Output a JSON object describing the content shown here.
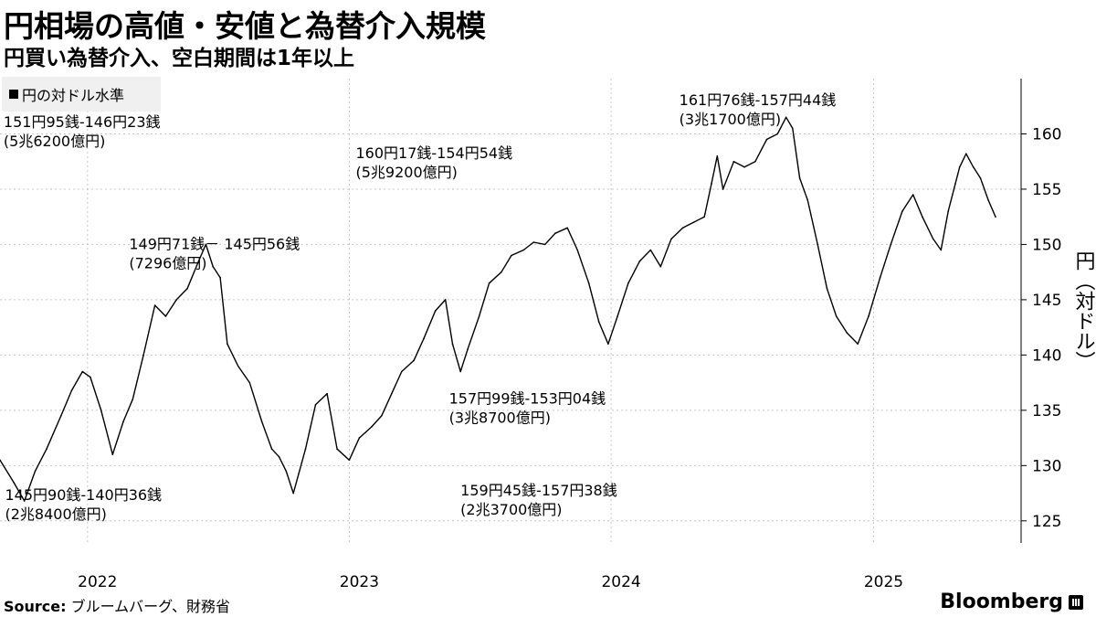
{
  "header": {
    "title": "円相場の高値・安値と為替介入規模",
    "subtitle": "円買い為替介入、空白期間は1年以上"
  },
  "legend": {
    "label": "円の対ドル水準"
  },
  "footer": {
    "source_label": "Source:",
    "source_text": "ブルームバーグ、財務省",
    "brand": "Bloomberg"
  },
  "colors": {
    "line": "#000000",
    "grid": "#c8c8c8",
    "legend_bg": "#f0f0f0"
  },
  "chart_data": {
    "type": "line",
    "ylabel": "円（対ドル）",
    "ylim": [
      123,
      165
    ],
    "y_ticks": [
      125,
      130,
      135,
      140,
      145,
      150,
      155,
      160
    ],
    "x_range": [
      "2021-09-01",
      "2025-06-20"
    ],
    "x_ticks": [
      {
        "date": "2022-01-01",
        "label": "2022"
      },
      {
        "date": "2023-01-01",
        "label": "2023"
      },
      {
        "date": "2024-01-01",
        "label": "2024"
      },
      {
        "date": "2025-01-01",
        "label": "2025"
      }
    ],
    "grid": true,
    "axis_side": "right",
    "series": [
      {
        "name": "円の対ドル水準",
        "points": [
          [
            "2021-09-01",
            130.5
          ],
          [
            "2021-09-20",
            128.5
          ],
          [
            "2021-10-05",
            126.8
          ],
          [
            "2021-10-20",
            129.5
          ],
          [
            "2021-11-05",
            131.5
          ],
          [
            "2021-11-25",
            134.5
          ],
          [
            "2021-12-10",
            136.8
          ],
          [
            "2021-12-25",
            138.5
          ],
          [
            "2022-01-05",
            138.0
          ],
          [
            "2022-01-20",
            135.0
          ],
          [
            "2022-02-05",
            131.0
          ],
          [
            "2022-02-20",
            134.0
          ],
          [
            "2022-03-05",
            136.0
          ],
          [
            "2022-03-20",
            140.0
          ],
          [
            "2022-04-05",
            144.5
          ],
          [
            "2022-04-20",
            143.5
          ],
          [
            "2022-05-05",
            145.0
          ],
          [
            "2022-05-20",
            146.0
          ],
          [
            "2022-06-05",
            148.5
          ],
          [
            "2022-06-15",
            150.0
          ],
          [
            "2022-06-25",
            148.0
          ],
          [
            "2022-07-05",
            147.0
          ],
          [
            "2022-07-15",
            141.0
          ],
          [
            "2022-07-30",
            139.0
          ],
          [
            "2022-08-15",
            137.5
          ],
          [
            "2022-09-01",
            134.0
          ],
          [
            "2022-09-15",
            131.5
          ],
          [
            "2022-09-25",
            130.8
          ],
          [
            "2022-10-05",
            129.5
          ],
          [
            "2022-10-15",
            127.5
          ],
          [
            "2022-11-01",
            131.5
          ],
          [
            "2022-11-15",
            135.5
          ],
          [
            "2022-12-01",
            136.5
          ],
          [
            "2022-12-15",
            131.5
          ],
          [
            "2023-01-01",
            130.5
          ],
          [
            "2023-01-15",
            132.5
          ],
          [
            "2023-02-01",
            133.5
          ],
          [
            "2023-02-15",
            134.5
          ],
          [
            "2023-03-01",
            136.5
          ],
          [
            "2023-03-15",
            138.5
          ],
          [
            "2023-04-01",
            139.5
          ],
          [
            "2023-04-15",
            141.5
          ],
          [
            "2023-05-01",
            144.0
          ],
          [
            "2023-05-15",
            145.0
          ],
          [
            "2023-05-25",
            141.0
          ],
          [
            "2023-06-05",
            138.5
          ],
          [
            "2023-06-15",
            140.5
          ],
          [
            "2023-07-01",
            143.5
          ],
          [
            "2023-07-15",
            146.5
          ],
          [
            "2023-08-01",
            147.5
          ],
          [
            "2023-08-15",
            149.0
          ],
          [
            "2023-09-01",
            149.5
          ],
          [
            "2023-09-15",
            150.2
          ],
          [
            "2023-10-01",
            150.0
          ],
          [
            "2023-10-15",
            151.0
          ],
          [
            "2023-11-01",
            151.5
          ],
          [
            "2023-11-15",
            149.5
          ],
          [
            "2023-12-01",
            146.5
          ],
          [
            "2023-12-15",
            143.0
          ],
          [
            "2023-12-28",
            141.0
          ],
          [
            "2024-01-10",
            143.5
          ],
          [
            "2024-01-25",
            146.5
          ],
          [
            "2024-02-10",
            148.5
          ],
          [
            "2024-02-25",
            149.5
          ],
          [
            "2024-03-10",
            148.0
          ],
          [
            "2024-03-25",
            150.5
          ],
          [
            "2024-04-10",
            151.5
          ],
          [
            "2024-04-25",
            152.0
          ],
          [
            "2024-05-10",
            152.5
          ],
          [
            "2024-05-20",
            155.5
          ],
          [
            "2024-05-28",
            158.0
          ],
          [
            "2024-06-05",
            155.0
          ],
          [
            "2024-06-20",
            157.5
          ],
          [
            "2024-07-05",
            157.0
          ],
          [
            "2024-07-20",
            157.5
          ],
          [
            "2024-08-05",
            159.5
          ],
          [
            "2024-08-20",
            160.0
          ],
          [
            "2024-09-01",
            161.5
          ],
          [
            "2024-09-10",
            160.5
          ],
          [
            "2024-09-20",
            156.0
          ],
          [
            "2024-10-01",
            154.0
          ],
          [
            "2024-10-15",
            150.0
          ],
          [
            "2024-10-28",
            146.0
          ],
          [
            "2024-11-10",
            143.5
          ],
          [
            "2024-11-25",
            142.0
          ],
          [
            "2024-12-10",
            141.0
          ],
          [
            "2024-12-25",
            143.5
          ],
          [
            "2025-01-10",
            147.0
          ],
          [
            "2025-01-25",
            150.0
          ],
          [
            "2025-02-10",
            153.0
          ],
          [
            "2025-02-25",
            154.5
          ],
          [
            "2025-03-10",
            152.5
          ],
          [
            "2025-03-25",
            150.5
          ],
          [
            "2025-04-05",
            149.5
          ],
          [
            "2025-04-15",
            153.0
          ],
          [
            "2025-04-25",
            155.5
          ],
          [
            "2025-05-01",
            157.0
          ],
          [
            "2025-05-10",
            158.2
          ],
          [
            "2025-05-20",
            157.0
          ],
          [
            "2025-05-30",
            156.0
          ],
          [
            "2025-06-10",
            154.0
          ],
          [
            "2025-06-20",
            152.5
          ]
        ]
      }
    ],
    "annotations": [
      {
        "lines": [
          "151円95銭-146円23銭",
          "(5兆6200億円)"
        ],
        "date": "2021-09-06",
        "y": 160.6
      },
      {
        "lines": [
          "149円71銭－ 145円56銭",
          "(7296億円)"
        ],
        "date": "2022-02-28",
        "y": 149.6
      },
      {
        "lines": [
          "160円17銭-154円54銭",
          "(5兆9200億円)"
        ],
        "date": "2023-01-10",
        "y": 157.8
      },
      {
        "lines": [
          "161円76銭-157円44銭",
          "(3兆1700億円)"
        ],
        "date": "2024-04-05",
        "y": 162.6
      },
      {
        "lines": [
          "157円99銭-153円04銭",
          "(3兆8700億円)"
        ],
        "date": "2023-05-20",
        "y": 135.6
      },
      {
        "lines": [
          "145円90銭-140円36銭",
          "(2兆8400億円)"
        ],
        "date": "2021-09-08",
        "y": 126.9
      },
      {
        "lines": [
          "159円45銭-157円38銭",
          "(2兆3700億円)"
        ],
        "date": "2023-06-05",
        "y": 127.3
      }
    ]
  }
}
